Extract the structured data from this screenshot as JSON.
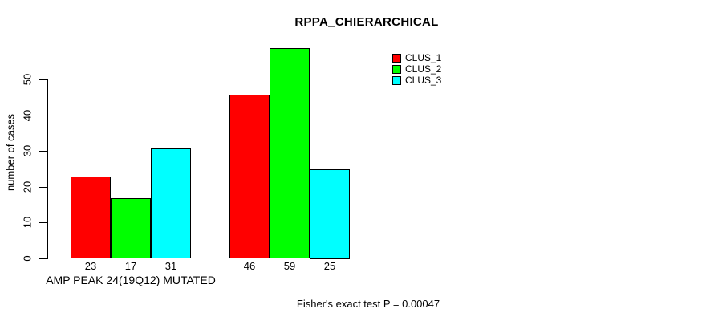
{
  "chart_data": {
    "type": "bar",
    "title": "RPPA_CHIERARCHICAL",
    "ylabel": "number of cases",
    "xlabel": "AMP PEAK 24(19Q12) MUTATED",
    "yticks": [
      0,
      10,
      20,
      30,
      40,
      50
    ],
    "ylim": [
      0,
      59
    ],
    "grid": false,
    "legend_position": "top-right",
    "series": [
      {
        "name": "CLUS_1",
        "color": "#ff0000"
      },
      {
        "name": "CLUS_2",
        "color": "#00ff00"
      },
      {
        "name": "CLUS_3",
        "color": "#00ffff"
      }
    ],
    "groups": [
      {
        "label": "AMP PEAK 24(19Q12) MUTATED",
        "values": [
          23,
          17,
          31
        ]
      },
      {
        "label": "",
        "values": [
          46,
          59,
          25
        ]
      }
    ],
    "annotation": "Fisher's exact test P = 0.00047"
  },
  "colors": {
    "background": "#ffffff",
    "text": "#000000",
    "axis": "#000000",
    "bar_border": "#000000"
  }
}
